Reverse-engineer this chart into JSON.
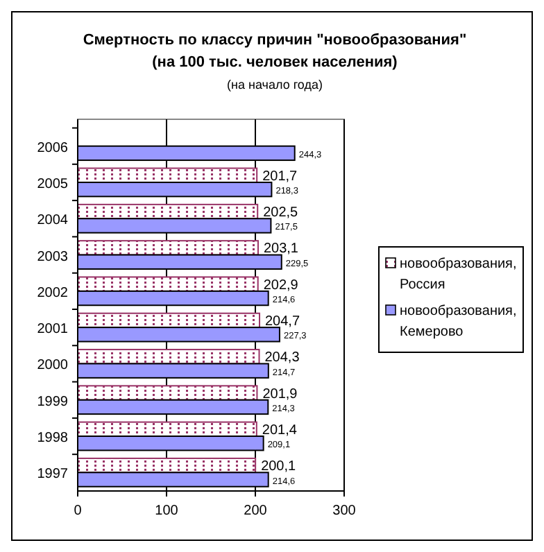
{
  "chart_data": {
    "type": "bar",
    "orientation": "horizontal",
    "title": "Смертность по классу причин \"новообразования\"",
    "subtitle": "(на 100 тыс. человек населения)",
    "annotations": [
      "(на начало года)"
    ],
    "categories": [
      "2006",
      "2005",
      "2004",
      "2003",
      "2002",
      "2001",
      "2000",
      "1999",
      "1998",
      "1997"
    ],
    "series": [
      {
        "name": "новообразования, Россия",
        "color": "#993366",
        "values": [
          null,
          201.7,
          202.5,
          203.1,
          202.9,
          204.7,
          204.3,
          201.9,
          201.4,
          200.1
        ],
        "value_labels": [
          null,
          "201,7",
          "202,5",
          "203,1",
          "202,9",
          "204,7",
          "204,3",
          "201,9",
          "201,4",
          "200,1"
        ]
      },
      {
        "name": "новообразования, Кемерово",
        "color": "#9999ff",
        "values": [
          244.3,
          218.3,
          217.5,
          229.5,
          214.6,
          227.3,
          214.7,
          214.3,
          209.1,
          214.6
        ],
        "value_labels": [
          "244,3",
          "218,3",
          "217,5",
          "229,5",
          "214,6",
          "227,3",
          "214,7",
          "214,3",
          "209,1",
          "214,6"
        ]
      }
    ],
    "xlim": [
      0,
      300
    ],
    "xticks": [
      0,
      100,
      200,
      300
    ],
    "grid": "x",
    "legend": "right"
  }
}
